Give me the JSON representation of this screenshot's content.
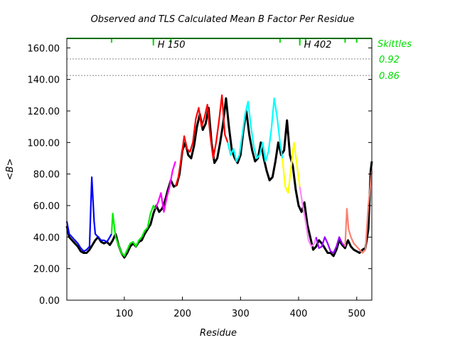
{
  "chart_data": {
    "type": "line",
    "title": "Observed and TLS Calculated Mean B Factor Per Residue",
    "xlabel": "Residue",
    "ylabel": "<B>",
    "xlim": [
      1,
      526
    ],
    "ylim": [
      0,
      166
    ],
    "x_ticks": [
      {
        "value": 100,
        "label": "100"
      },
      {
        "value": 200,
        "label": "200"
      },
      {
        "value": 300,
        "label": "300"
      },
      {
        "value": 400,
        "label": "400"
      },
      {
        "value": 500,
        "label": "500"
      }
    ],
    "y_ticks": [
      {
        "value": 0,
        "label": "0.00"
      },
      {
        "value": 20,
        "label": "20.00"
      },
      {
        "value": 40,
        "label": "40.00"
      },
      {
        "value": 60,
        "label": "60.00"
      },
      {
        "value": 80,
        "label": "80.00"
      },
      {
        "value": 100,
        "label": "100.00"
      },
      {
        "value": 120,
        "label": "120.00"
      },
      {
        "value": 140,
        "label": "140.00"
      },
      {
        "value": 160,
        "label": "160.00"
      }
    ],
    "ref_lines": [
      {
        "value": 153,
        "label": "0.92"
      },
      {
        "value": 142.5,
        "label": "0.86"
      }
    ],
    "skittles_label": "Skittles",
    "skittles_color": "#00dd00",
    "skittles_y": 166,
    "skittles_marks": [
      78,
      150,
      180,
      368,
      402,
      412,
      480,
      500
    ],
    "annotations": [
      {
        "x": 150,
        "label": "H 150"
      },
      {
        "x": 402,
        "label": "H 402"
      }
    ],
    "observed": {
      "color": "#000000",
      "x": [
        1,
        5,
        10,
        15,
        20,
        25,
        30,
        35,
        40,
        45,
        50,
        55,
        60,
        65,
        70,
        75,
        80,
        85,
        90,
        95,
        100,
        105,
        110,
        115,
        120,
        125,
        130,
        135,
        140,
        145,
        150,
        155,
        160,
        165,
        170,
        175,
        180,
        185,
        190,
        195,
        200,
        205,
        210,
        215,
        220,
        225,
        230,
        235,
        240,
        245,
        250,
        255,
        260,
        265,
        270,
        275,
        280,
        285,
        290,
        295,
        300,
        305,
        310,
        315,
        320,
        325,
        330,
        335,
        340,
        345,
        350,
        355,
        360,
        365,
        370,
        375,
        380,
        385,
        390,
        395,
        400,
        405,
        410,
        415,
        420,
        425,
        430,
        435,
        440,
        445,
        450,
        455,
        460,
        465,
        470,
        475,
        480,
        485,
        490,
        495,
        500,
        505,
        510,
        515,
        520,
        524,
        526
      ],
      "y": [
        47,
        40,
        38,
        36,
        34,
        31,
        30,
        30,
        32,
        35,
        38,
        40,
        37,
        36,
        37,
        35,
        38,
        42,
        35,
        30,
        27,
        30,
        34,
        36,
        34,
        37,
        38,
        42,
        45,
        48,
        55,
        60,
        56,
        58,
        63,
        70,
        76,
        72,
        73,
        80,
        95,
        100,
        92,
        90,
        98,
        110,
        118,
        108,
        112,
        122,
        100,
        87,
        90,
        100,
        112,
        128,
        110,
        95,
        90,
        87,
        92,
        108,
        120,
        105,
        95,
        88,
        90,
        100,
        90,
        82,
        76,
        78,
        88,
        100,
        92,
        95,
        114,
        92,
        85,
        70,
        60,
        56,
        62,
        48,
        40,
        32,
        34,
        38,
        36,
        33,
        30,
        30,
        28,
        32,
        38,
        35,
        33,
        38,
        34,
        32,
        31,
        30,
        32,
        33,
        45,
        82,
        88
      ]
    },
    "series": [
      {
        "name": "",
        "color": "#0000ff",
        "x": [
          1,
          5,
          10,
          15,
          20,
          25,
          30,
          35,
          40,
          44,
          48,
          50,
          55,
          60,
          65,
          70,
          75,
          78
        ],
        "y": [
          50,
          42,
          40,
          38,
          36,
          33,
          31,
          32,
          34,
          78,
          50,
          42,
          40,
          38,
          38,
          37,
          40,
          42
        ]
      },
      {
        "name": "",
        "color": "#00ee00",
        "x": [
          78,
          80,
          85,
          90,
          95,
          100,
          105,
          110,
          115,
          120,
          125,
          130,
          135,
          140,
          145,
          150,
          153
        ],
        "y": [
          42,
          55,
          40,
          35,
          30,
          28,
          32,
          36,
          37,
          34,
          38,
          40,
          44,
          46,
          55,
          60,
          58
        ]
      },
      {
        "name": "",
        "color": "#ff00ff",
        "x": [
          153,
          158,
          163,
          168,
          173,
          178,
          183,
          188
        ],
        "y": [
          58,
          62,
          68,
          56,
          65,
          72,
          82,
          88
        ]
      },
      {
        "name": "",
        "color": "#ff0000",
        "x": [
          188,
          193,
          198,
          203,
          208,
          213,
          218,
          223,
          228,
          233,
          238,
          243,
          248,
          253,
          258,
          263,
          268,
          273,
          278
        ],
        "y": [
          72,
          78,
          90,
          104,
          96,
          94,
          100,
          115,
          122,
          110,
          116,
          124,
          104,
          90,
          100,
          114,
          130,
          105,
          100
        ]
      },
      {
        "name": "",
        "color": "#00ffff",
        "x": [
          278,
          283,
          288,
          293,
          298,
          303,
          308,
          313,
          318,
          323,
          328,
          333,
          338,
          343,
          348,
          353,
          358,
          363,
          368,
          372
        ],
        "y": [
          100,
          92,
          96,
          88,
          92,
          105,
          118,
          126,
          110,
          97,
          90,
          92,
          100,
          88,
          94,
          108,
          128,
          116,
          100,
          90
        ]
      },
      {
        "name": "",
        "color": "#ffff00",
        "x": [
          372,
          377,
          382,
          387,
          392,
          397,
          402
        ],
        "y": [
          90,
          72,
          68,
          84,
          100,
          86,
          72
        ]
      },
      {
        "name": "",
        "color": "#ff88ff",
        "x": [
          402,
          407,
          412,
          417,
          422,
          427,
          430
        ],
        "y": [
          72,
          60,
          50,
          38,
          34,
          36,
          40
        ]
      },
      {
        "name": "",
        "color": "#9900ff",
        "x": [
          430,
          435,
          440,
          445,
          450,
          455,
          460,
          465,
          470,
          475,
          480
        ],
        "y": [
          40,
          33,
          34,
          40,
          36,
          31,
          30,
          34,
          40,
          36,
          34
        ]
      },
      {
        "name": "",
        "color": "#fa8072",
        "x": [
          480,
          483,
          486,
          490,
          495,
          500,
          505,
          510,
          515,
          520,
          526
        ],
        "y": [
          34,
          58,
          45,
          40,
          36,
          34,
          32,
          30,
          32,
          60,
          82
        ]
      }
    ]
  }
}
